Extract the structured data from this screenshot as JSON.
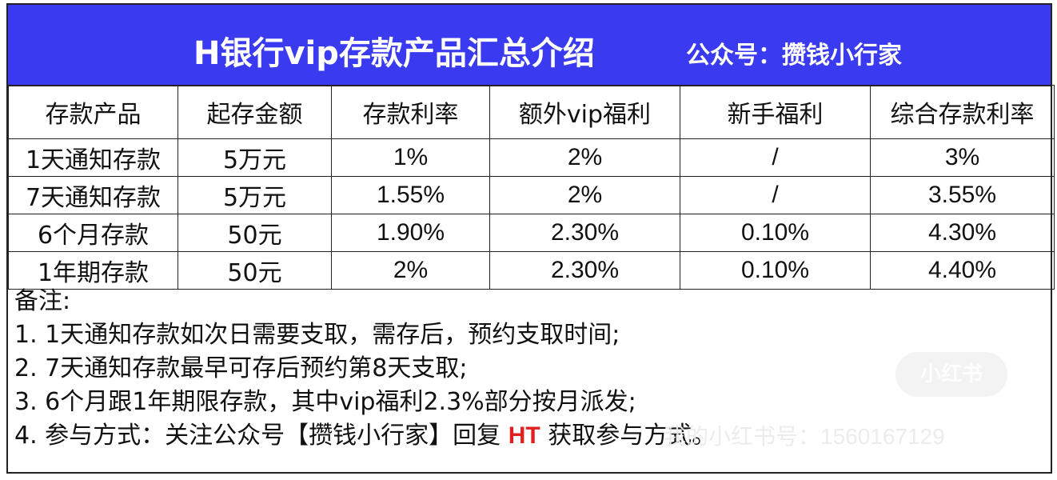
{
  "banner": {
    "title": "H银行vip存款产品汇总介绍",
    "subtitle": "公众号：攒钱小行家",
    "background": "#3a3af0"
  },
  "table": {
    "headers": [
      "存款产品",
      "起存金额",
      "存款利率",
      "额外vip福利",
      "新手福利",
      "综合存款利率"
    ],
    "rows": [
      [
        "1天通知存款",
        "5万元",
        "1%",
        "2%",
        "/",
        "3%"
      ],
      [
        "7天通知存款",
        "5万元",
        "1.55%",
        "2%",
        "/",
        "3.55%"
      ],
      [
        "6个月存款",
        "50元",
        "1.90%",
        "2.30%",
        "0.10%",
        "4.30%"
      ],
      [
        "1年期存款",
        "50元",
        "2%",
        "2.30%",
        "0.10%",
        "4.40%"
      ]
    ]
  },
  "notes": {
    "heading": "备注:",
    "line1": "1. 1天通知存款如次日需要支取，需存后，预约支取时间;",
    "line2": "2. 7天通知存款最早可存后预约第8天支取;",
    "line3": "3. 6个月跟1年期限存款，其中vip福利2.3%部分按月派发;",
    "line4_prefix": "4. 参与方式：关注公众号【攒钱小行家】回复 ",
    "line4_highlight": "HT",
    "line4_suffix": " 获取参与方式。",
    "highlight_color": "#e02020"
  },
  "watermark": {
    "logo": "小红书",
    "id_text": "我的小红书号：1560167129"
  }
}
